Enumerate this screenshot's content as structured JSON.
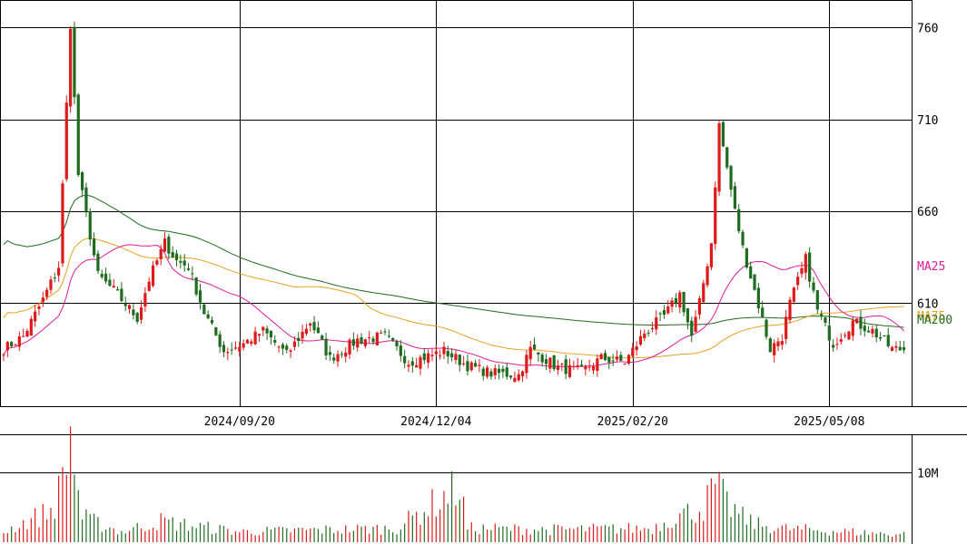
{
  "chart_data": {
    "type": "candlestick",
    "price_axis": {
      "ticks": [
        "760",
        "710",
        "660",
        "610"
      ],
      "tick_values": [
        760,
        710,
        660,
        610
      ],
      "range": [
        554,
        775
      ]
    },
    "date_axis": {
      "labels": [
        "2024/09/20",
        "2024/12/04",
        "2025/02/20",
        "2025/05/08"
      ],
      "label_index": [
        60,
        110,
        160,
        210
      ]
    },
    "volume_axis": {
      "tick_label": "10M",
      "tick_value": 10,
      "range": [
        0,
        15.3
      ]
    },
    "legend": [
      {
        "name": "MA25",
        "color": "#dd1a9a"
      },
      {
        "name": "MA75",
        "color": "#e8a020"
      },
      {
        "name": "MA200",
        "color": "#1f6b1f"
      }
    ],
    "colors": {
      "up": "#dd1a1a",
      "down": "#1f6b1f",
      "volume_up": "#dd1a1a",
      "volume_down": "#1f6b1f",
      "grid": "#000000"
    },
    "anchors": [
      [
        0,
        585
      ],
      [
        5,
        592
      ],
      [
        10,
        612
      ],
      [
        14,
        630
      ],
      [
        17,
        762
      ],
      [
        19,
        680
      ],
      [
        24,
        625
      ],
      [
        28,
        617
      ],
      [
        34,
        602
      ],
      [
        37,
        623
      ],
      [
        41,
        643
      ],
      [
        44,
        633
      ],
      [
        47,
        630
      ],
      [
        51,
        605
      ],
      [
        56,
        584
      ],
      [
        61,
        588
      ],
      [
        66,
        595
      ],
      [
        72,
        582
      ],
      [
        78,
        600
      ],
      [
        83,
        580
      ],
      [
        90,
        590
      ],
      [
        97,
        592
      ],
      [
        103,
        578
      ],
      [
        112,
        584
      ],
      [
        118,
        576
      ],
      [
        124,
        572
      ],
      [
        131,
        571
      ],
      [
        134,
        585
      ],
      [
        141,
        575
      ],
      [
        147,
        573
      ],
      [
        152,
        580
      ],
      [
        158,
        578
      ],
      [
        163,
        594
      ],
      [
        168,
        603
      ],
      [
        172,
        615
      ],
      [
        175,
        592
      ],
      [
        177,
        610
      ],
      [
        180,
        643
      ],
      [
        182,
        707
      ],
      [
        186,
        660
      ],
      [
        188,
        640
      ],
      [
        191,
        617
      ],
      [
        195,
        585
      ],
      [
        198,
        592
      ],
      [
        200,
        610
      ],
      [
        204,
        634
      ],
      [
        207,
        606
      ],
      [
        211,
        588
      ],
      [
        216,
        600
      ],
      [
        221,
        595
      ],
      [
        226,
        585
      ]
    ],
    "vol_anchors": [
      [
        0,
        1.5
      ],
      [
        12,
        4.5
      ],
      [
        14,
        7.0
      ],
      [
        17,
        15.0
      ],
      [
        20,
        3.5
      ],
      [
        30,
        1.5
      ],
      [
        40,
        3.0
      ],
      [
        46,
        2.5
      ],
      [
        60,
        1.5
      ],
      [
        100,
        2.0
      ],
      [
        116,
        8.0
      ],
      [
        118,
        2.0
      ],
      [
        140,
        1.8
      ],
      [
        165,
        2.0
      ],
      [
        170,
        3.5
      ],
      [
        178,
        5.0
      ],
      [
        180,
        7.0
      ],
      [
        181,
        8.0
      ],
      [
        184,
        5.5
      ],
      [
        188,
        3.5
      ],
      [
        192,
        2.5
      ],
      [
        197,
        2.0
      ],
      [
        225,
        1.2
      ]
    ]
  }
}
